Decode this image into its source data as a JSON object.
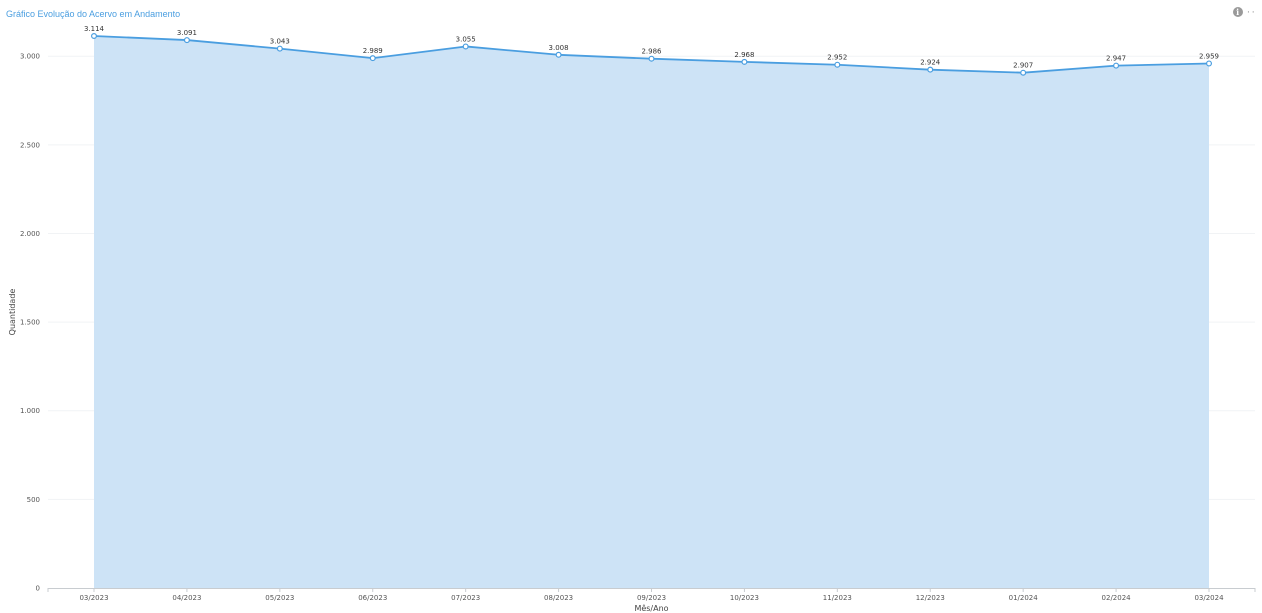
{
  "header": {
    "title": "Gráfico Evolução do Acervo em Andamento",
    "info_icon": "info-icon",
    "menu_icon": "more-options-icon"
  },
  "colors": {
    "title": "#4a9ee0",
    "line": "#4a9ee0",
    "area": "#cde3f6",
    "grid": "#f1f3f5"
  },
  "chart_data": {
    "type": "area",
    "title": "Gráfico Evolução do Acervo em Andamento",
    "xlabel": "Mês/Ano",
    "ylabel": "Quantidade",
    "categories": [
      "03/2023",
      "04/2023",
      "05/2023",
      "06/2023",
      "07/2023",
      "08/2023",
      "09/2023",
      "10/2023",
      "11/2023",
      "12/2023",
      "01/2024",
      "02/2024",
      "03/2024"
    ],
    "series": [
      {
        "values": [
          3114,
          3091,
          3043,
          2989,
          3055,
          3008,
          2986,
          2968,
          2952,
          2924,
          2907,
          2947,
          2959
        ],
        "labels": [
          "3.114",
          "3.091",
          "3.043",
          "2.989",
          "3.055",
          "3.008",
          "2.986",
          "2.968",
          "2.952",
          "2.924",
          "2.907",
          "2.947",
          "2.959"
        ]
      }
    ],
    "ylim": [
      0,
      3114
    ],
    "yticks": [
      0,
      500,
      1000,
      1500,
      2000,
      2500,
      3000
    ],
    "ytick_labels": [
      "0",
      "500",
      "1.000",
      "1.500",
      "2.000",
      "2.500",
      "3.000"
    ],
    "grid": true,
    "legend": "none"
  }
}
